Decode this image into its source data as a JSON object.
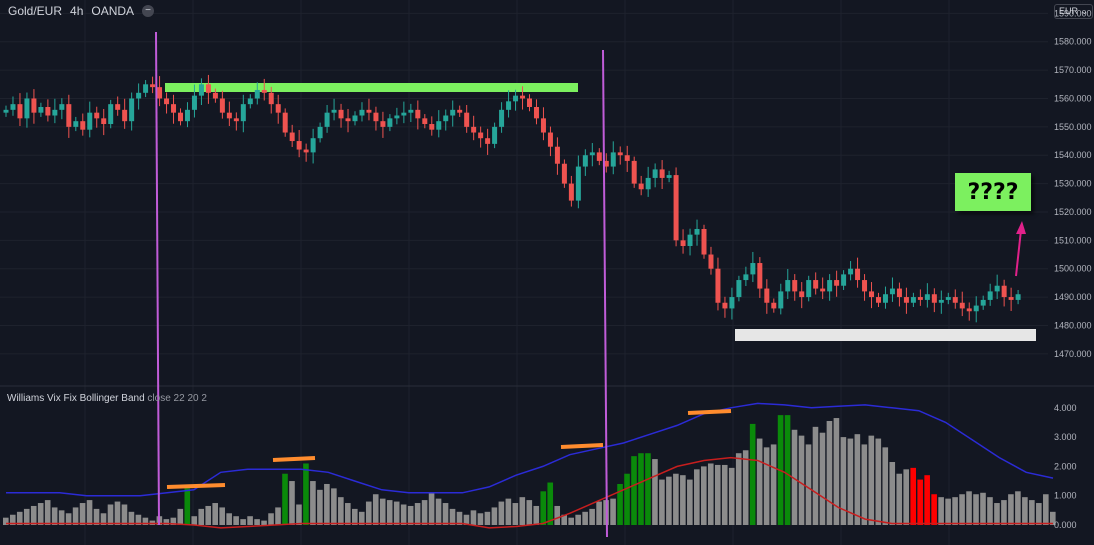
{
  "header": {
    "symbol": "Gold/EUR",
    "interval": "4h",
    "source": "OANDA"
  },
  "currency_button": "EUR",
  "annotation_text": "????",
  "indicator": {
    "name": "Williams Vix Fix Bollinger Band",
    "params": "close 22 20 2"
  },
  "colors": {
    "background": "#131722",
    "grid": "#1e222d",
    "candle_up": "#26a69a",
    "candle_down": "#ef5350",
    "vix_gray": "#8c8c8c",
    "vix_green": "#0a8a0a",
    "vix_red": "#ff0000",
    "upper_band": "#2b2bd6",
    "lower_band": "#c81e1e",
    "vertical_marker": "#c05cd8",
    "green_zone": "#7cf05f",
    "white_zone": "#e6e6e6",
    "arrow": "#e0218a",
    "orange_marker": "#ff8c2e"
  },
  "chart_data": [
    {
      "type": "candlestick",
      "title": "Gold/EUR · 4h · OANDA",
      "ylim": [
        1465,
        1595
      ],
      "y_ticks": [
        "1590.000",
        "1580.000",
        "1570.000",
        "1560.000",
        "1550.000",
        "1540.000",
        "1530.000",
        "1520.000",
        "1510.000",
        "1500.000",
        "1490.000",
        "1480.000",
        "1470.000"
      ],
      "close": [
        1556,
        1558,
        1553,
        1560,
        1555,
        1557,
        1554,
        1556,
        1558,
        1550,
        1552,
        1549,
        1555,
        1553,
        1551,
        1558,
        1556,
        1552,
        1560,
        1562,
        1565,
        1564,
        1560,
        1558,
        1555,
        1552,
        1556,
        1561,
        1565,
        1562,
        1560,
        1555,
        1553,
        1552,
        1558,
        1560,
        1563,
        1562,
        1558,
        1555,
        1548,
        1545,
        1542,
        1541,
        1546,
        1550,
        1555,
        1556,
        1553,
        1552,
        1554,
        1556,
        1555,
        1552,
        1550,
        1553,
        1554,
        1555,
        1556,
        1553,
        1551,
        1549,
        1552,
        1554,
        1556,
        1555,
        1550,
        1548,
        1546,
        1544,
        1550,
        1556,
        1559,
        1561,
        1560,
        1557,
        1553,
        1548,
        1543,
        1537,
        1530,
        1524,
        1536,
        1540,
        1541,
        1538,
        1536,
        1541,
        1540,
        1538,
        1530,
        1528,
        1532,
        1535,
        1532,
        1533,
        1510,
        1508,
        1512,
        1514,
        1505,
        1500,
        1488,
        1486,
        1490,
        1496,
        1498,
        1502,
        1493,
        1488,
        1486,
        1492,
        1496,
        1492,
        1490,
        1496,
        1493,
        1492,
        1496,
        1494,
        1498,
        1500,
        1496,
        1492,
        1490,
        1488,
        1491,
        1493,
        1490,
        1488,
        1490,
        1489,
        1491,
        1488,
        1489,
        1490,
        1488,
        1486,
        1485,
        1487,
        1489,
        1492,
        1494,
        1490,
        1489,
        1491
      ],
      "series": [
        {
          "name": "Williams Vix Fix Bollinger Band",
          "ylim": [
            -0.2,
            4.4
          ],
          "y_ticks": [
            "4.000",
            "3.000",
            "2.000",
            "1.000",
            "0.000"
          ]
        }
      ]
    },
    {
      "type": "bar",
      "title": "Williams Vix Fix Bollinger Band",
      "ylim": [
        -0.2,
        4.4
      ],
      "values": [
        0.25,
        0.35,
        0.45,
        0.55,
        0.65,
        0.75,
        0.85,
        0.6,
        0.5,
        0.4,
        0.6,
        0.75,
        0.85,
        0.55,
        0.4,
        0.7,
        0.8,
        0.7,
        0.45,
        0.35,
        0.25,
        0.15,
        0.3,
        0.2,
        0.25,
        0.55,
        1.25,
        0.3,
        0.55,
        0.65,
        0.75,
        0.6,
        0.4,
        0.3,
        0.2,
        0.3,
        0.2,
        0.15,
        0.4,
        0.6,
        1.75,
        1.5,
        0.7,
        2.1,
        1.5,
        1.2,
        1.4,
        1.25,
        0.95,
        0.75,
        0.55,
        0.45,
        0.8,
        1.05,
        0.9,
        0.85,
        0.8,
        0.7,
        0.65,
        0.75,
        0.85,
        1.1,
        0.9,
        0.75,
        0.55,
        0.45,
        0.35,
        0.5,
        0.4,
        0.45,
        0.6,
        0.8,
        0.9,
        0.75,
        0.95,
        0.85,
        0.65,
        1.15,
        1.45,
        0.65,
        0.35,
        0.25,
        0.35,
        0.45,
        0.55,
        0.8,
        0.85,
        0.9,
        1.4,
        1.75,
        2.35,
        2.45,
        2.45,
        2.25,
        1.55,
        1.65,
        1.75,
        1.7,
        1.55,
        1.9,
        2.0,
        2.1,
        2.05,
        2.05,
        1.95,
        2.45,
        2.55,
        3.45,
        2.95,
        2.65,
        2.75,
        3.75,
        3.75,
        3.25,
        3.05,
        2.75,
        3.35,
        3.15,
        3.55,
        3.65,
        3.0,
        2.95,
        3.1,
        2.75,
        3.05,
        2.95,
        2.65,
        2.15,
        1.75,
        1.9,
        1.95,
        1.55,
        1.7,
        1.05,
        0.95,
        0.9,
        0.95,
        1.05,
        1.15,
        1.05,
        1.1,
        0.95,
        0.75,
        0.85,
        1.05,
        1.15,
        0.95,
        0.85,
        0.75,
        1.05,
        0.45
      ],
      "highlight_green": [
        26,
        40,
        43,
        77,
        78,
        88,
        89,
        90,
        91,
        92,
        107,
        111,
        112
      ],
      "highlight_red": [
        130,
        131,
        132,
        133
      ],
      "upper_band": [
        1.1,
        1.1,
        1.1,
        1.0,
        1.0,
        1.0,
        1.1,
        1.2,
        1.8,
        1.9,
        1.9,
        1.9,
        1.8,
        1.5,
        1.2,
        1.1,
        1.1,
        1.1,
        1.3,
        1.7,
        2.0,
        2.4,
        2.6,
        2.8,
        3.1,
        3.4,
        3.8,
        4.0,
        4.15,
        4.1,
        4.0,
        4.05,
        4.1,
        4.0,
        3.9,
        3.5,
        2.9,
        2.3,
        1.8,
        1.6
      ],
      "lower_band": [
        0.05,
        0.05,
        0.05,
        0.05,
        0.05,
        0.05,
        0.05,
        0.0,
        -0.1,
        -0.05,
        0.0,
        0.05,
        0.05,
        0.05,
        0.05,
        0.05,
        0.05,
        0.05,
        -0.1,
        -0.05,
        0.05,
        0.4,
        0.8,
        1.2,
        1.6,
        2.0,
        2.2,
        2.3,
        2.2,
        1.8,
        1.2,
        0.6,
        0.2,
        0.05,
        0.05,
        0.05,
        0.05,
        0.05,
        0.05,
        0.05
      ]
    }
  ]
}
